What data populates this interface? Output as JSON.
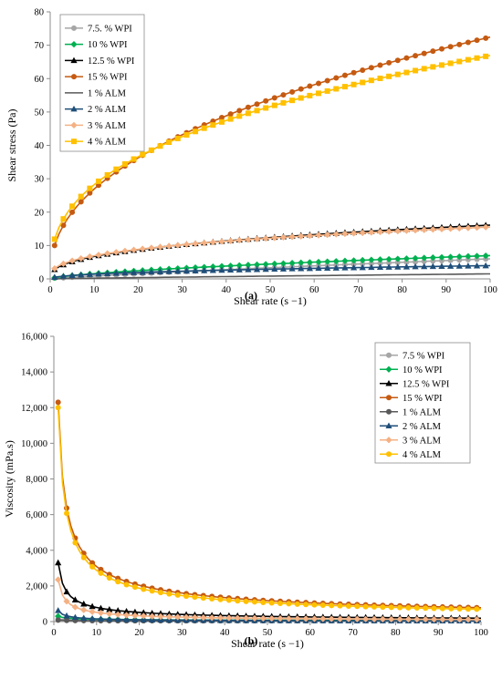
{
  "chart_data": [
    {
      "panel_label": "(a)",
      "type": "line",
      "title": "",
      "xlabel": "Shear rate (s −1)",
      "ylabel": "Shear stress (Pa)",
      "xlim": [
        0,
        100
      ],
      "ylim": [
        0,
        80
      ],
      "xticks": [
        "0",
        "10",
        "20",
        "30",
        "40",
        "50",
        "60",
        "70",
        "80",
        "90",
        "100"
      ],
      "yticks": [
        "0",
        "10",
        "20",
        "30",
        "40",
        "50",
        "60",
        "70",
        "80"
      ],
      "grid": false,
      "legend_position": "top-left",
      "series": [
        {
          "name": "7.5. % WPI",
          "color": "#a6a6a6",
          "marker": "circle",
          "model": "power",
          "k": 0.12,
          "n": 0.85
        },
        {
          "name": "10 % WPI",
          "color": "#00b050",
          "marker": "diamond",
          "model": "power",
          "k": 0.35,
          "n": 0.65
        },
        {
          "name": "12.5 % WPI",
          "color": "#000000",
          "marker": "triangle",
          "model": "power",
          "k": 2.8,
          "n": 0.38
        },
        {
          "name": "15 % WPI",
          "color": "#c55a11",
          "marker": "circle",
          "model": "power",
          "k": 10.0,
          "n": 0.43
        },
        {
          "name": "1 % ALM",
          "color": "#595959",
          "marker": "none",
          "model": "power",
          "k": 0.03,
          "n": 0.85
        },
        {
          "name": "2 % ALM",
          "color": "#1f4e79",
          "marker": "triangle",
          "model": "power",
          "k": 0.5,
          "n": 0.45
        },
        {
          "name": "3 % ALM",
          "color": "#f4b183",
          "marker": "diamond",
          "model": "power",
          "k": 3.1,
          "n": 0.35
        },
        {
          "name": "4 % ALM",
          "color": "#ffc000",
          "marker": "square",
          "model": "power",
          "k": 11.9,
          "n": 0.375
        }
      ]
    },
    {
      "panel_label": "(b)",
      "type": "line",
      "title": "",
      "xlabel": "Shear rate (s −1)",
      "ylabel": "Viscosity (mPa.s)",
      "xlim": [
        0,
        100
      ],
      "ylim": [
        0,
        16000
      ],
      "xticks": [
        "0",
        "10",
        "20",
        "30",
        "40",
        "50",
        "60",
        "70",
        "80",
        "90",
        "100"
      ],
      "yticks": [
        "0",
        "2,000",
        "4,000",
        "6,000",
        "8,000",
        "10,000",
        "12,000",
        "14,000",
        "16,000"
      ],
      "grid": false,
      "legend_position": "top-right",
      "series": [
        {
          "name": "7.5 % WPI",
          "color": "#a6a6a6",
          "marker": "circle",
          "model": "power",
          "k": 140,
          "n": -0.2
        },
        {
          "name": "10 % WPI",
          "color": "#00b050",
          "marker": "diamond",
          "model": "power",
          "k": 300,
          "n": -0.35
        },
        {
          "name": "12.5 % WPI",
          "color": "#000000",
          "marker": "triangle",
          "model": "power",
          "k": 3300,
          "n": -0.62
        },
        {
          "name": "15 % WPI",
          "color": "#c55a11",
          "marker": "circle",
          "model": "power",
          "k": 12300,
          "n": -0.6
        },
        {
          "name": "1 % ALM",
          "color": "#595959",
          "marker": "circle",
          "model": "power",
          "k": 80,
          "n": -0.2
        },
        {
          "name": "2 % ALM",
          "color": "#1f4e79",
          "marker": "triangle",
          "model": "power",
          "k": 620,
          "n": -0.6
        },
        {
          "name": "3 % ALM",
          "color": "#f4b183",
          "marker": "diamond",
          "model": "power",
          "k": 2350,
          "n": -0.66
        },
        {
          "name": "4 % ALM",
          "color": "#ffc000",
          "marker": "circle",
          "model": "power",
          "k": 12000,
          "n": -0.62
        }
      ]
    }
  ]
}
